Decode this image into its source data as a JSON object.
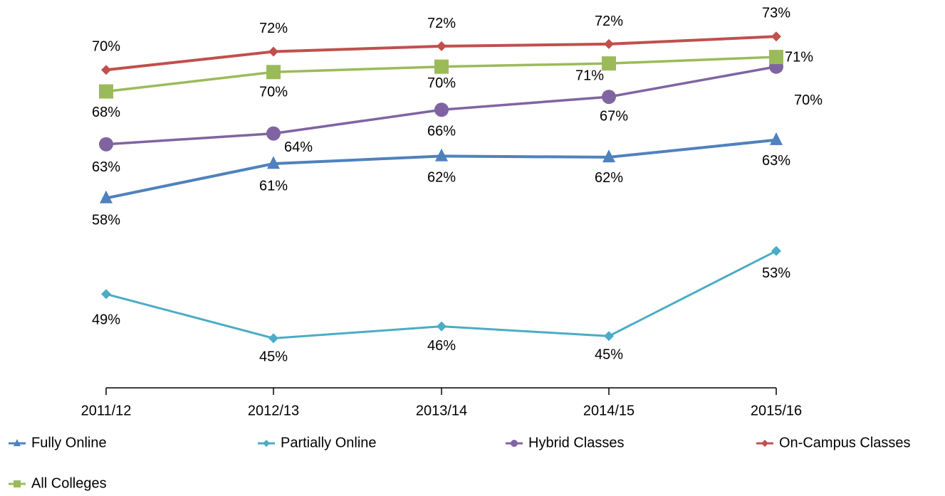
{
  "chart_data": {
    "type": "line",
    "categories": [
      "2011/12",
      "2012/13",
      "2013/14",
      "2014/15",
      "2015/16"
    ],
    "ylim": [
      40.4,
      75
    ],
    "series": [
      {
        "name": "Fully Online",
        "color": "#4f81bd",
        "marker": "triangle",
        "values": [
          58.0,
          61.2,
          61.9,
          61.8,
          63.4
        ],
        "value_labels": [
          "58%",
          "61%",
          "62%",
          "62%",
          "63%"
        ]
      },
      {
        "name": "Partially Online",
        "color": "#4bacc6",
        "marker": "diamond",
        "values": [
          49.1,
          45.0,
          46.1,
          45.2,
          53.1
        ],
        "value_labels": [
          "49%",
          "45%",
          "46%",
          "45%",
          "53%"
        ]
      },
      {
        "name": "Hybrid Classes",
        "color": "#8064a2",
        "marker": "circle",
        "values": [
          63.0,
          64.0,
          66.2,
          67.4,
          70.2
        ],
        "value_labels": [
          "63%",
          "64%",
          "66%",
          "67%",
          "70%"
        ]
      },
      {
        "name": "On-Campus Classes",
        "color": "#c0504d",
        "marker": "diamond",
        "values": [
          69.9,
          71.6,
          72.1,
          72.3,
          73.0
        ],
        "value_labels": [
          "70%",
          "72%",
          "72%",
          "72%",
          "73%"
        ]
      },
      {
        "name": "All Colleges",
        "color": "#9bbb59",
        "marker": "square",
        "values": [
          67.9,
          69.7,
          70.2,
          70.5,
          71.1
        ],
        "value_labels": [
          "68%",
          "70%",
          "70%",
          "71%",
          "71%"
        ]
      }
    ]
  }
}
